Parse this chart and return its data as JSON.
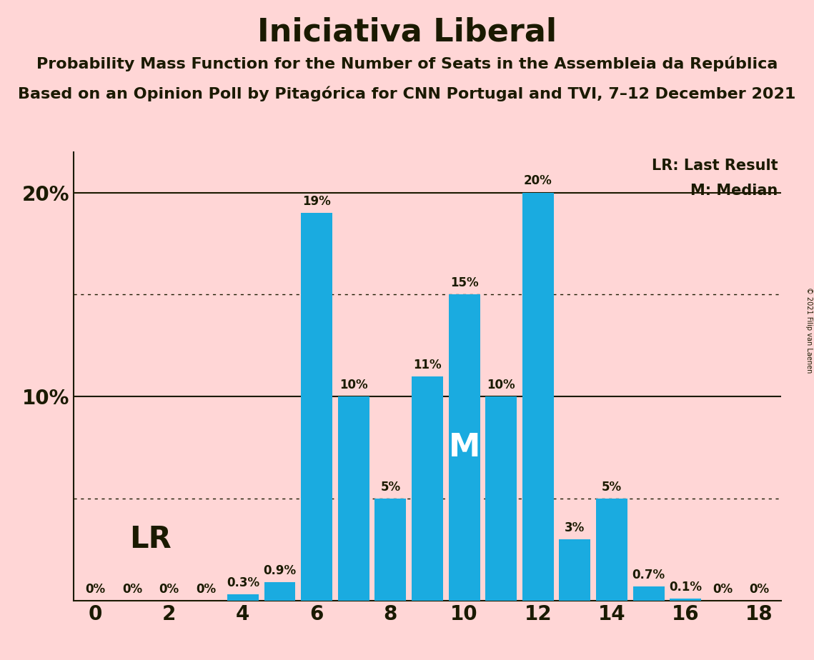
{
  "title": "Iniciativa Liberal",
  "subtitle1": "Probability Mass Function for the Number of Seats in the Assembleia da República",
  "subtitle2": "Based on an Opinion Poll by Pitagórica for CNN Portugal and TVI, 7–12 December 2021",
  "copyright": "© 2021 Filip van Laenen",
  "seats": [
    0,
    1,
    2,
    3,
    4,
    5,
    6,
    7,
    8,
    9,
    10,
    11,
    12,
    13,
    14,
    15,
    16,
    17,
    18
  ],
  "probabilities": [
    0.0,
    0.0,
    0.0,
    0.0,
    0.3,
    0.9,
    19.0,
    10.0,
    5.0,
    11.0,
    15.0,
    10.0,
    20.0,
    3.0,
    5.0,
    0.7,
    0.1,
    0.0,
    0.0
  ],
  "bar_color": "#1aabe0",
  "background_color": "#ffd6d6",
  "text_color": "#1a1a00",
  "median": 10,
  "last_result": 4,
  "ylim": [
    0,
    22
  ],
  "yticks_labeled": [
    10,
    20
  ],
  "ytick_labels": [
    "10%",
    "20%"
  ],
  "solid_gridlines": [
    10,
    20
  ],
  "dotted_gridlines": [
    5,
    15
  ],
  "legend_lr": "LR: Last Result",
  "legend_m": "M: Median",
  "lr_label": "LR",
  "m_label": "M",
  "title_fontsize": 32,
  "subtitle_fontsize": 16,
  "bar_label_fontsize": 12,
  "tick_fontsize": 20,
  "legend_fontsize": 15,
  "lr_fontsize": 30,
  "m_fontsize": 32
}
